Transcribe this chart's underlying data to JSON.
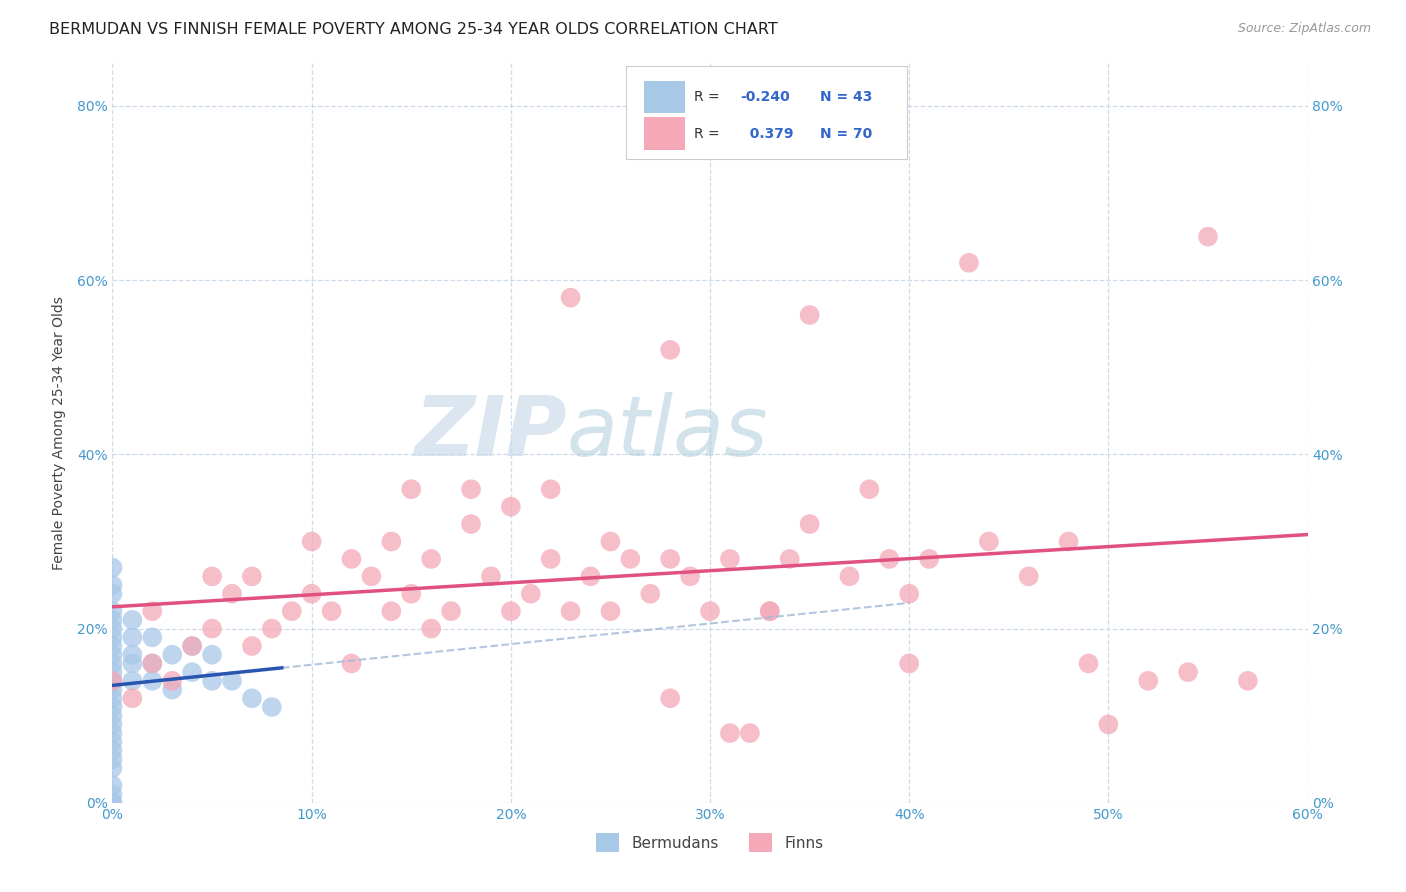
{
  "title": "BERMUDAN VS FINNISH FEMALE POVERTY AMONG 25-34 YEAR OLDS CORRELATION CHART",
  "source": "Source: ZipAtlas.com",
  "ylabel": "Female Poverty Among 25-34 Year Olds",
  "xlim": [
    0.0,
    0.6
  ],
  "ylim": [
    0.0,
    0.85
  ],
  "bermudan_color": "#a8c8e8",
  "finn_color": "#f4a8b8",
  "bermudan_line_color": "#2855b0",
  "finn_line_color": "#e05080",
  "bermudan_dashed_color": "#a0b8d8",
  "R_bermudan": -0.24,
  "N_bermudan": 43,
  "R_finn": 0.379,
  "N_finn": 70,
  "background_color": "#ffffff",
  "grid_color": "#c8d8e8",
  "title_fontsize": 11.5,
  "label_fontsize": 10,
  "watermark_zip": "ZIP",
  "watermark_atlas": "atlas",
  "berm_x": [
    0.0,
    0.0,
    0.0,
    0.0,
    0.0,
    0.0,
    0.0,
    0.0,
    0.0,
    0.0,
    0.0,
    0.0,
    0.0,
    0.0,
    0.0,
    0.0,
    0.0,
    0.0,
    0.0,
    0.0,
    0.0,
    0.0,
    0.0,
    0.0,
    0.0,
    0.01,
    0.01,
    0.01,
    0.01,
    0.01,
    0.02,
    0.02,
    0.02,
    0.03,
    0.03,
    0.04,
    0.04,
    0.05,
    0.05,
    0.06,
    0.07,
    0.08,
    0.0
  ],
  "berm_y": [
    0.0,
    0.01,
    0.02,
    0.04,
    0.05,
    0.06,
    0.07,
    0.08,
    0.09,
    0.1,
    0.11,
    0.12,
    0.13,
    0.14,
    0.15,
    0.16,
    0.17,
    0.18,
    0.19,
    0.2,
    0.21,
    0.22,
    0.24,
    0.25,
    0.27,
    0.14,
    0.16,
    0.17,
    0.19,
    0.21,
    0.14,
    0.16,
    0.19,
    0.13,
    0.17,
    0.15,
    0.18,
    0.14,
    0.17,
    0.14,
    0.12,
    0.11,
    0.0
  ],
  "finn_x": [
    0.0,
    0.01,
    0.02,
    0.02,
    0.03,
    0.04,
    0.05,
    0.05,
    0.06,
    0.07,
    0.07,
    0.08,
    0.09,
    0.1,
    0.1,
    0.11,
    0.12,
    0.12,
    0.13,
    0.14,
    0.14,
    0.15,
    0.15,
    0.16,
    0.16,
    0.17,
    0.18,
    0.18,
    0.19,
    0.2,
    0.2,
    0.21,
    0.22,
    0.22,
    0.23,
    0.24,
    0.25,
    0.25,
    0.26,
    0.27,
    0.28,
    0.29,
    0.3,
    0.31,
    0.32,
    0.33,
    0.34,
    0.35,
    0.37,
    0.38,
    0.39,
    0.4,
    0.41,
    0.43,
    0.44,
    0.46,
    0.48,
    0.49,
    0.5,
    0.52,
    0.54,
    0.55,
    0.57,
    0.35,
    0.23,
    0.28,
    0.33,
    0.4,
    0.28,
    0.31
  ],
  "finn_y": [
    0.14,
    0.12,
    0.16,
    0.22,
    0.14,
    0.18,
    0.2,
    0.26,
    0.24,
    0.18,
    0.26,
    0.2,
    0.22,
    0.24,
    0.3,
    0.22,
    0.16,
    0.28,
    0.26,
    0.22,
    0.3,
    0.24,
    0.36,
    0.2,
    0.28,
    0.22,
    0.32,
    0.36,
    0.26,
    0.22,
    0.34,
    0.24,
    0.28,
    0.36,
    0.22,
    0.26,
    0.3,
    0.22,
    0.28,
    0.24,
    0.28,
    0.26,
    0.22,
    0.28,
    0.08,
    0.22,
    0.28,
    0.32,
    0.26,
    0.36,
    0.28,
    0.24,
    0.28,
    0.62,
    0.3,
    0.26,
    0.3,
    0.16,
    0.09,
    0.14,
    0.15,
    0.65,
    0.14,
    0.56,
    0.58,
    0.52,
    0.22,
    0.16,
    0.12,
    0.08
  ]
}
